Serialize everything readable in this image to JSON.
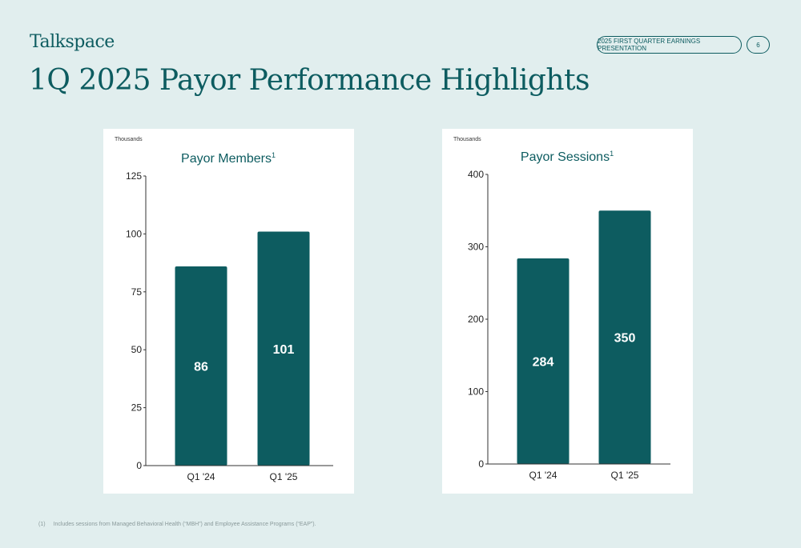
{
  "header": {
    "logo": "Talkspace",
    "presentation_label": "2025 FIRST QUARTER EARNINGS PRESENTATION",
    "page_number": "6"
  },
  "title": "1Q 2025 Payor Performance Highlights",
  "footnote": {
    "marker": "(1)",
    "text": "Includes sessions from Managed Behavioral Health (“MBH”) and Employee Assistance Programs (“EAP”)."
  },
  "colors": {
    "bar": "#0d5c60",
    "accent_text": "#0d5c60",
    "background": "#e1eeee",
    "card": "#ffffff"
  },
  "chart_data": [
    {
      "type": "bar",
      "title": "Payor Members",
      "title_superscript": "1",
      "unit_label": "Thousands",
      "categories": [
        "Q1 '24",
        "Q1 '25"
      ],
      "values": [
        86,
        101
      ],
      "ylim": [
        0,
        125
      ],
      "yticks": [
        0,
        25,
        50,
        75,
        100,
        125
      ],
      "grid": false,
      "legend": "none"
    },
    {
      "type": "bar",
      "title": "Payor Sessions",
      "title_superscript": "1",
      "unit_label": "Thousands",
      "categories": [
        "Q1 '24",
        "Q1 '25"
      ],
      "values": [
        284,
        350
      ],
      "ylim": [
        0,
        400
      ],
      "yticks": [
        0,
        100,
        200,
        300,
        400
      ],
      "grid": false,
      "legend": "none"
    }
  ]
}
